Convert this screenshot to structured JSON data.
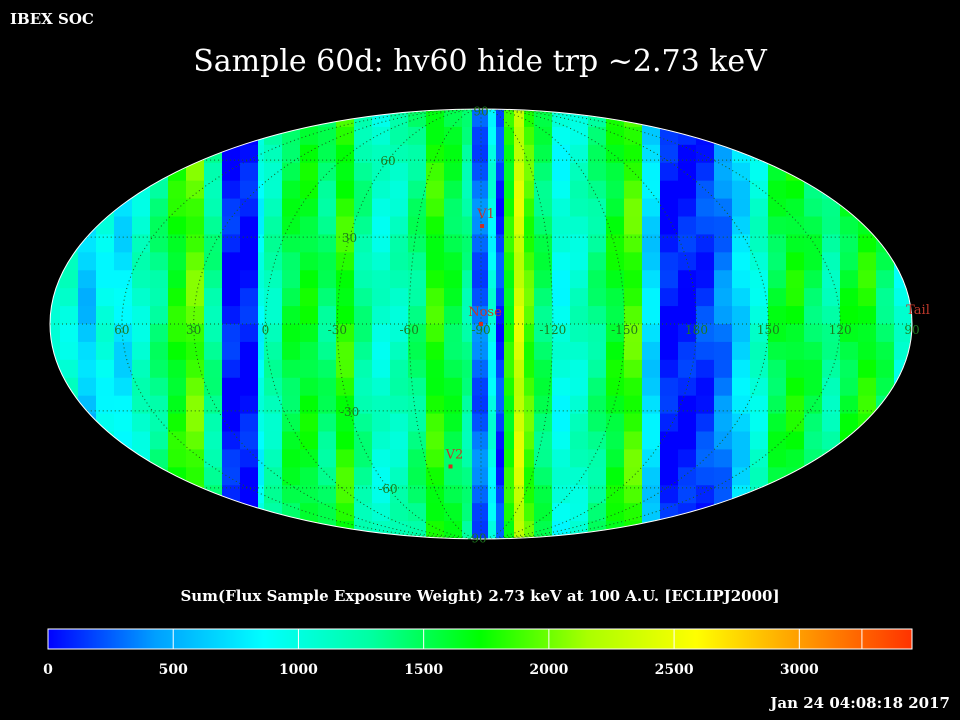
{
  "header": {
    "corner_label": "IBEX SOC",
    "title": "Sample 60d: hv60 hide trp ~2.73 keV"
  },
  "map": {
    "projection": "Mollweide",
    "longitude_labels": [
      {
        "text": "60",
        "lon": 60
      },
      {
        "text": "30",
        "lon": 30
      },
      {
        "text": "0",
        "lon": 0
      },
      {
        "text": "-30",
        "lon": -30
      },
      {
        "text": "-60",
        "lon": -60
      },
      {
        "text": "-90",
        "lon": -90
      },
      {
        "text": "-120",
        "lon": -120
      },
      {
        "text": "-150",
        "lon": -150
      },
      {
        "text": "180",
        "lon": 180
      },
      {
        "text": "150",
        "lon": 150
      },
      {
        "text": "120",
        "lon": 120
      },
      {
        "text": "90",
        "lon": 90
      }
    ],
    "latitude_labels": [
      {
        "text": "90",
        "lat": 90
      },
      {
        "text": "60",
        "lat": 60
      },
      {
        "text": "30",
        "lat": 30
      },
      {
        "text": "-30",
        "lat": -30
      },
      {
        "text": "-60",
        "lat": -60
      },
      {
        "text": "-90",
        "lat": -90
      }
    ],
    "markers": [
      {
        "label": "V1",
        "lon": -90.5,
        "lat": 34
      },
      {
        "label": "Nose",
        "lon": -90,
        "lat": 0
      },
      {
        "label": "V2",
        "lon": -73,
        "lat": -51
      },
      {
        "label": "Tail",
        "lon": 90,
        "lat": 0
      }
    ]
  },
  "colorbar": {
    "caption": "Sum(Flux Sample Exposure Weight)  2.73 keV at 100 A.U. [ECLIPJ2000]",
    "min": 0,
    "max": 3450,
    "tick_labels": [
      "0",
      "500",
      "1000",
      "1500",
      "2000",
      "2500",
      "3000"
    ],
    "tick_values": [
      0,
      500,
      1000,
      1500,
      2000,
      2500,
      3000
    ],
    "colors": [
      "#0000ff",
      "#00a0ff",
      "#00ffff",
      "#00ffa0",
      "#00ff00",
      "#aaff00",
      "#ffff00",
      "#ff9900",
      "#ff3300"
    ]
  },
  "footer": {
    "timestamp": "Jan 24 04:08:18 2017"
  }
}
